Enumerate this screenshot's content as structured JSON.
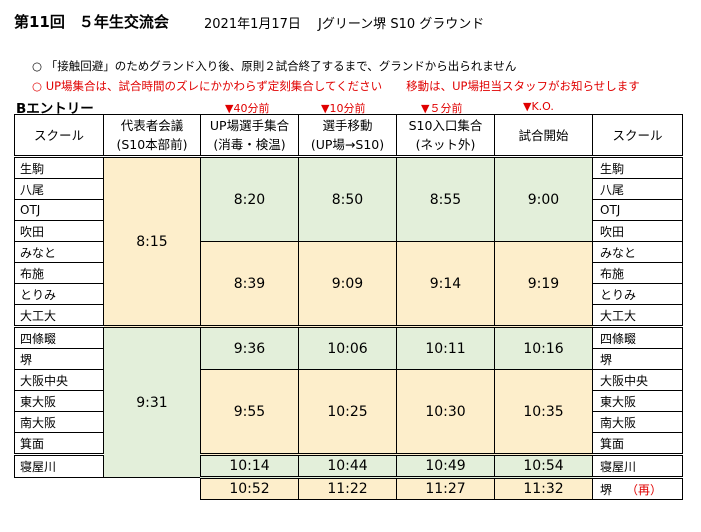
{
  "header": {
    "edition": "第11回",
    "event": "５年生交流会",
    "date": "2021年1月17日",
    "venue": "Jグリーン堺 S10 グラウンド"
  },
  "notes": [
    "○ 「接触回避」のためグランド入り後、原則２試合終了するまで、グランドから出られません",
    "○ UP場集合は、試合時間のズレにかかわらず定刻集合してください",
    "移動は、UP場担当スタッフがお知らせします"
  ],
  "section_title": "Bエントリー",
  "timing_labels": [
    "▼40分前",
    "▼10分前",
    "▼５分前",
    "▼K.O."
  ],
  "columns": {
    "school": "スクール",
    "meeting_l1": "代表者会議",
    "meeting_l2": "(S10本部前)",
    "up_l1": "UP場選手集合",
    "up_l2": "(消毒・検温)",
    "move_l1": "選手移動",
    "move_l2": "(UP場→S10)",
    "entry_l1": "S10入口集合",
    "entry_l2": "(ネット外)",
    "kickoff": "試合開始",
    "school_right": "スクール"
  },
  "schools": [
    "生駒",
    "八尾",
    "OTJ",
    "吹田",
    "みなと",
    "布施",
    "とりみ",
    "大工大",
    "四條畷",
    "堺",
    "大阪中央",
    "東大阪",
    "南大阪",
    "箕面",
    "寝屋川"
  ],
  "meeting_times": [
    "8:15",
    "9:31"
  ],
  "time_groups": [
    [
      "8:20",
      "8:50",
      "8:55",
      "9:00"
    ],
    [
      "8:39",
      "9:09",
      "9:14",
      "9:19"
    ],
    [
      "9:36",
      "10:06",
      "10:11",
      "10:16"
    ],
    [
      "9:55",
      "10:25",
      "10:30",
      "10:35"
    ],
    [
      "10:14",
      "10:44",
      "10:49",
      "10:54"
    ],
    [
      "10:52",
      "11:22",
      "11:27",
      "11:32"
    ]
  ],
  "last_row_school": "堺",
  "last_row_mark": "（再）"
}
